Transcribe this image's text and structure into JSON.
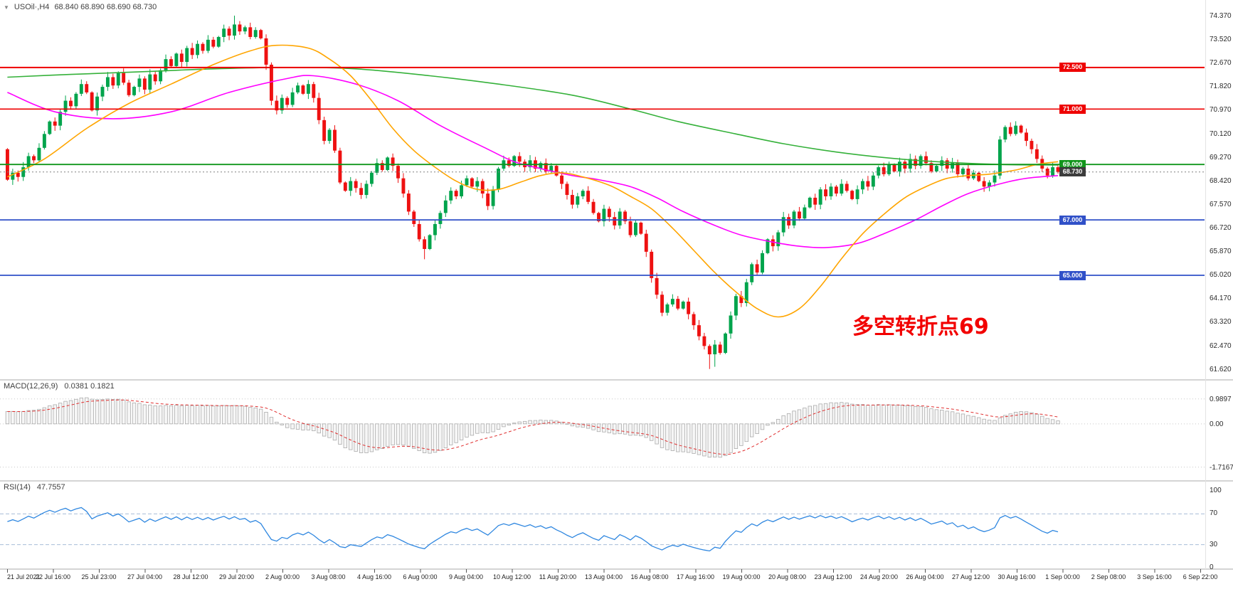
{
  "header": {
    "dropdown_icon": "▼",
    "symbol_label": "USOil·,H4",
    "ohlc": "68.840 68.890 68.690 68.730"
  },
  "colors": {
    "up": "#00a44c",
    "down": "#ee1111",
    "background": "#ffffff",
    "separator": "#a9a9a9"
  },
  "chart_data": {
    "type": "candlestick",
    "symbol": "USOil",
    "timeframe": "H4",
    "quote": {
      "open": "68.840",
      "high": "68.890",
      "low": "68.690",
      "close": "68.730"
    },
    "price_axis": {
      "labels": [
        "74.370",
        "73.520",
        "72.670",
        "71.820",
        "70.970",
        "70.120",
        "69.270",
        "68.420",
        "67.570",
        "66.720",
        "65.870",
        "65.020",
        "64.170",
        "63.320",
        "62.470",
        "61.620"
      ]
    },
    "time_axis": {
      "labels": [
        "21 Jul 2021",
        "22 Jul 16:00",
        "25 Jul 23:00",
        "27 Jul 04:00",
        "28 Jul 12:00",
        "29 Jul 20:00",
        "2 Aug 00:00",
        "3 Aug 08:00",
        "4 Aug 16:00",
        "6 Aug 00:00",
        "9 Aug 04:00",
        "10 Aug 12:00",
        "11 Aug 20:00",
        "13 Aug 04:00",
        "16 Aug 08:00",
        "17 Aug 16:00",
        "19 Aug 00:00",
        "20 Aug 08:00",
        "23 Aug 12:00",
        "24 Aug 20:00",
        "26 Aug 04:00",
        "27 Aug 12:00",
        "30 Aug 16:00",
        "1 Sep 00:00",
        "2 Sep 08:00",
        "3 Sep 16:00",
        "6 Sep 22:00"
      ]
    },
    "candles": {
      "first_open": 69.55,
      "closes": [
        68.45,
        68.7,
        68.55,
        68.9,
        69.3,
        69.15,
        69.6,
        70.1,
        70.55,
        70.4,
        70.9,
        71.3,
        71.1,
        71.55,
        71.9,
        71.6,
        70.95,
        71.45,
        71.8,
        72.15,
        71.85,
        72.3,
        71.95,
        71.5,
        71.8,
        72.1,
        71.7,
        72.25,
        72.0,
        72.4,
        72.8,
        72.55,
        73.0,
        72.7,
        73.2,
        72.95,
        73.35,
        73.1,
        73.5,
        73.25,
        73.6,
        73.9,
        73.65,
        74.05,
        73.8,
        73.95,
        73.6,
        73.85,
        73.55,
        72.6,
        71.3,
        70.95,
        71.4,
        71.15,
        71.6,
        71.85,
        71.55,
        71.9,
        71.4,
        70.6,
        69.85,
        70.25,
        69.5,
        68.35,
        68.05,
        68.4,
        68.15,
        67.9,
        68.3,
        68.7,
        69.05,
        68.8,
        69.25,
        68.95,
        68.5,
        67.95,
        67.3,
        66.85,
        66.3,
        65.95,
        66.45,
        66.85,
        67.25,
        67.7,
        68.05,
        67.85,
        68.25,
        68.5,
        68.2,
        68.4,
        67.95,
        67.5,
        68.1,
        68.85,
        69.15,
        68.95,
        69.3,
        69.1,
        68.9,
        69.15,
        68.85,
        69.05,
        68.75,
        68.95,
        68.6,
        68.3,
        67.9,
        67.55,
        67.85,
        68.05,
        67.65,
        67.25,
        66.95,
        67.4,
        67.1,
        66.8,
        67.3,
        66.95,
        66.45,
        66.9,
        66.5,
        65.85,
        64.9,
        64.3,
        63.65,
        63.95,
        64.15,
        63.8,
        64.05,
        63.6,
        63.2,
        62.8,
        62.45,
        62.15,
        62.5,
        62.2,
        62.9,
        63.55,
        64.25,
        64.0,
        64.75,
        65.4,
        65.1,
        65.8,
        66.3,
        66.05,
        66.55,
        67.1,
        66.8,
        67.3,
        67.05,
        67.45,
        67.8,
        67.55,
        68.1,
        67.85,
        68.2,
        67.95,
        68.3,
        68.05,
        67.75,
        68.1,
        68.4,
        68.2,
        68.6,
        68.9,
        68.65,
        69.0,
        68.75,
        69.1,
        68.85,
        69.2,
        68.95,
        69.3,
        69.05,
        68.75,
        68.95,
        69.15,
        68.85,
        69.05,
        68.65,
        68.85,
        68.5,
        68.7,
        68.4,
        68.2,
        68.35,
        68.6,
        69.9,
        70.35,
        70.1,
        70.4,
        70.15,
        69.85,
        69.55,
        69.2,
        68.85,
        68.6,
        68.9,
        68.73
      ],
      "spikes": {
        "43": {
          "h": 74.37
        },
        "79": {
          "l": 65.58
        },
        "133": {
          "l": 61.62
        },
        "134": {
          "l": 61.7
        },
        "191": {
          "h": 70.56
        }
      }
    },
    "hlines": [
      {
        "price": 72.5,
        "label": "72.500",
        "color": "#ee0000",
        "width": 2.0
      },
      {
        "price": 71.0,
        "label": "71.000",
        "color": "#ee0000",
        "width": 1.6
      },
      {
        "price": 69.0,
        "label": "69.000",
        "color": "#11961b",
        "width": 1.8
      },
      {
        "price": 68.73,
        "label": "68.730",
        "color": "#808080",
        "width": 1.0,
        "style": "dotted",
        "box": "#3c3c3c"
      },
      {
        "price": 67.0,
        "label": "67.000",
        "color": "#3050c8",
        "width": 1.8
      },
      {
        "price": 65.0,
        "label": "65.000",
        "color": "#3050c8",
        "width": 1.8
      }
    ],
    "moving_averages": [
      {
        "name": "ma-slow",
        "color": "#35b13a",
        "points": [
          [
            0,
            72.15
          ],
          [
            12,
            72.25
          ],
          [
            26,
            72.35
          ],
          [
            39,
            72.45
          ],
          [
            53,
            72.5
          ],
          [
            66,
            72.45
          ],
          [
            80,
            72.2
          ],
          [
            93,
            71.9
          ],
          [
            107,
            71.5
          ],
          [
            118,
            71.0
          ],
          [
            127,
            70.55
          ],
          [
            138,
            70.1
          ],
          [
            147,
            69.75
          ],
          [
            157,
            69.45
          ],
          [
            166,
            69.25
          ],
          [
            176,
            69.1
          ],
          [
            188,
            69.0
          ],
          [
            199,
            68.98
          ]
        ]
      },
      {
        "name": "ma-mid",
        "color": "#ff00ff",
        "points": [
          [
            0,
            71.6
          ],
          [
            9,
            70.9
          ],
          [
            20,
            70.65
          ],
          [
            31,
            70.9
          ],
          [
            42,
            71.6
          ],
          [
            53,
            72.1
          ],
          [
            58,
            72.2
          ],
          [
            66,
            71.9
          ],
          [
            74,
            71.3
          ],
          [
            82,
            70.4
          ],
          [
            91,
            69.55
          ],
          [
            96,
            69.1
          ],
          [
            101,
            68.85
          ],
          [
            107,
            68.6
          ],
          [
            112,
            68.45
          ],
          [
            118,
            68.2
          ],
          [
            123,
            67.8
          ],
          [
            128,
            67.3
          ],
          [
            134,
            66.8
          ],
          [
            139,
            66.45
          ],
          [
            145,
            66.2
          ],
          [
            150,
            66.05
          ],
          [
            155,
            66.0
          ],
          [
            161,
            66.15
          ],
          [
            166,
            66.5
          ],
          [
            172,
            67.0
          ],
          [
            177,
            67.5
          ],
          [
            182,
            67.95
          ],
          [
            188,
            68.3
          ],
          [
            193,
            68.5
          ],
          [
            199,
            68.6
          ]
        ]
      },
      {
        "name": "ma-fast",
        "color": "#ffa500",
        "points": [
          [
            0,
            68.55
          ],
          [
            7,
            69.2
          ],
          [
            15,
            70.3
          ],
          [
            23,
            71.2
          ],
          [
            31,
            71.9
          ],
          [
            39,
            72.6
          ],
          [
            46,
            73.1
          ],
          [
            51,
            73.3
          ],
          [
            57,
            73.2
          ],
          [
            61,
            72.8
          ],
          [
            65,
            72.2
          ],
          [
            69,
            71.3
          ],
          [
            73,
            70.3
          ],
          [
            77,
            69.5
          ],
          [
            81,
            68.9
          ],
          [
            85,
            68.4
          ],
          [
            89,
            68.1
          ],
          [
            93,
            68.1
          ],
          [
            97,
            68.35
          ],
          [
            101,
            68.6
          ],
          [
            105,
            68.7
          ],
          [
            109,
            68.55
          ],
          [
            114,
            68.25
          ],
          [
            118,
            67.85
          ],
          [
            122,
            67.4
          ],
          [
            126,
            66.7
          ],
          [
            130,
            65.9
          ],
          [
            134,
            65.1
          ],
          [
            138,
            64.4
          ],
          [
            142,
            63.8
          ],
          [
            146,
            63.5
          ],
          [
            150,
            63.8
          ],
          [
            154,
            64.6
          ],
          [
            158,
            65.6
          ],
          [
            162,
            66.5
          ],
          [
            166,
            67.2
          ],
          [
            170,
            67.8
          ],
          [
            174,
            68.2
          ],
          [
            178,
            68.5
          ],
          [
            182,
            68.6
          ],
          [
            186,
            68.65
          ],
          [
            191,
            68.8
          ],
          [
            195,
            69.0
          ],
          [
            199,
            69.1
          ]
        ]
      }
    ],
    "macd": {
      "label": "MACD(12,26,9)",
      "values_text": "0.0381 0.1821",
      "fast": 12,
      "slow": 26,
      "signal": 9,
      "seed_fast": 68.12,
      "seed_slow": 67.62,
      "range": [
        -2.15,
        1.35
      ],
      "axis_labels": [
        "0.9897",
        "0.00",
        "-1.7167"
      ],
      "color_signal": "#e03030",
      "color_hist": "#ababab"
    },
    "rsi": {
      "label": "RSI(14)",
      "value_text": "47.7557",
      "period": 14,
      "seed_gain": 0.18,
      "seed_loss": 0.12,
      "levels": [
        70,
        30
      ],
      "axis_labels": [
        "100",
        "70",
        "30",
        "0"
      ],
      "color": "#2f87e0"
    },
    "annotation": {
      "text": "多空转折点69",
      "color": "#f20000"
    }
  }
}
